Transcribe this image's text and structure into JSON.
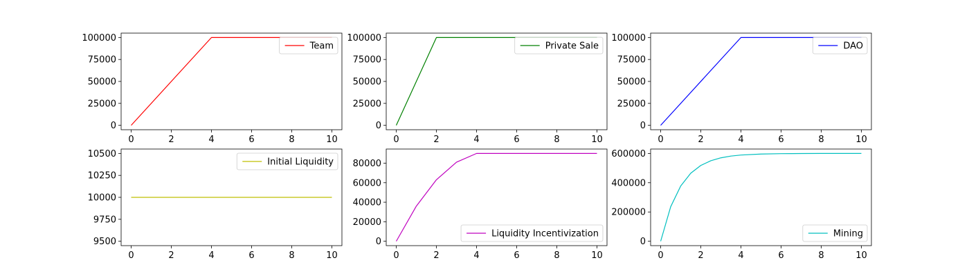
{
  "chart_data": [
    {
      "type": "line",
      "series": [
        {
          "name": "Team",
          "color": "#ff0000",
          "x": [
            0,
            4,
            5,
            6,
            7,
            8,
            9,
            10
          ],
          "values": [
            0,
            100000,
            100000,
            100000,
            100000,
            100000,
            100000,
            100000
          ]
        }
      ],
      "xlim": [
        0,
        10
      ],
      "ylim": [
        0,
        100000
      ],
      "xticks": [
        0,
        2,
        4,
        6,
        8,
        10
      ],
      "yticks": [
        0,
        25000,
        50000,
        75000,
        100000
      ],
      "legend": "upper-right"
    },
    {
      "type": "line",
      "series": [
        {
          "name": "Private Sale",
          "color": "#008000",
          "x": [
            0,
            2,
            3,
            4,
            5,
            6,
            7,
            8,
            9,
            10
          ],
          "values": [
            0,
            100000,
            100000,
            100000,
            100000,
            100000,
            100000,
            100000,
            100000,
            100000
          ]
        }
      ],
      "xlim": [
        0,
        10
      ],
      "ylim": [
        0,
        100000
      ],
      "xticks": [
        0,
        2,
        4,
        6,
        8,
        10
      ],
      "yticks": [
        0,
        25000,
        50000,
        75000,
        100000
      ],
      "legend": "upper-right"
    },
    {
      "type": "line",
      "series": [
        {
          "name": "DAO",
          "color": "#0000ff",
          "x": [
            0,
            4,
            5,
            6,
            7,
            8,
            9,
            10
          ],
          "values": [
            0,
            100000,
            100000,
            100000,
            100000,
            100000,
            100000,
            100000
          ]
        }
      ],
      "xlim": [
        0,
        10
      ],
      "ylim": [
        0,
        100000
      ],
      "xticks": [
        0,
        2,
        4,
        6,
        8,
        10
      ],
      "yticks": [
        0,
        25000,
        50000,
        75000,
        100000
      ],
      "legend": "upper-right"
    },
    {
      "type": "line",
      "series": [
        {
          "name": "Initial Liquidity",
          "color": "#bfbf00",
          "x": [
            0,
            10
          ],
          "values": [
            10000,
            10000
          ]
        }
      ],
      "xlim": [
        0,
        10
      ],
      "ylim": [
        9500,
        10500
      ],
      "xticks": [
        0,
        2,
        4,
        6,
        8,
        10
      ],
      "yticks": [
        9500,
        9750,
        10000,
        10250,
        10500
      ],
      "legend": "upper-right"
    },
    {
      "type": "line",
      "series": [
        {
          "name": "Liquidity Incentivization",
          "color": "#bf00bf",
          "x": [
            0,
            1,
            2,
            3,
            4,
            5,
            6,
            7,
            8,
            9,
            10
          ],
          "values": [
            0,
            36000,
            63000,
            81000,
            90000,
            90000,
            90000,
            90000,
            90000,
            90000,
            90000
          ]
        }
      ],
      "xlim": [
        0,
        10
      ],
      "ylim": [
        0,
        90000
      ],
      "xticks": [
        0,
        2,
        4,
        6,
        8,
        10
      ],
      "yticks": [
        0,
        20000,
        40000,
        60000,
        80000
      ],
      "legend": "lower-right"
    },
    {
      "type": "line",
      "series": [
        {
          "name": "Mining",
          "color": "#00bfbf",
          "x": [
            0,
            0.5,
            1,
            1.5,
            2,
            2.5,
            3,
            3.5,
            4,
            5,
            6,
            7,
            8,
            9,
            10
          ],
          "values": [
            0,
            236000,
            378000,
            465000,
            518000,
            550000,
            570000,
            582000,
            589000,
            596000,
            598500,
            599400,
            599800,
            599900,
            600000
          ]
        }
      ],
      "xlim": [
        0,
        10
      ],
      "ylim": [
        0,
        600000
      ],
      "xticks": [
        0,
        2,
        4,
        6,
        8,
        10
      ],
      "yticks": [
        0,
        200000,
        400000,
        600000
      ],
      "legend": "lower-right"
    }
  ]
}
